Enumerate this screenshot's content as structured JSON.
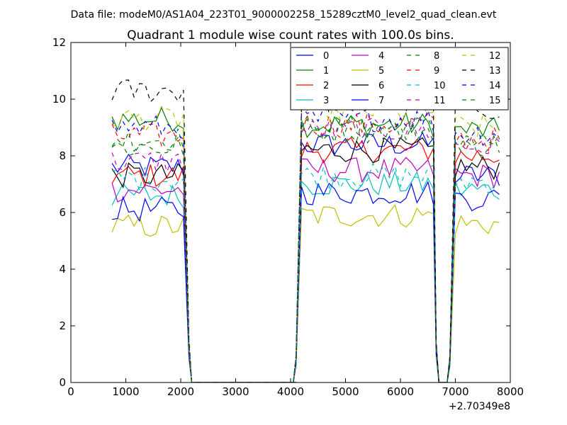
{
  "suptitle": "Data file: modeM0/AS1A04_223T01_9000002258_15289cztM0_level2_quad_clean.evt",
  "chart_data": {
    "type": "line",
    "title": "Quadrant 1 module wise count rates with 100.0s bins.",
    "xlabel": "",
    "ylabel": "",
    "x_offset_label": "+2.70349e8",
    "xlim": [
      0,
      8000
    ],
    "ylim": [
      0,
      12
    ],
    "xticks": [
      0,
      1000,
      2000,
      3000,
      4000,
      5000,
      6000,
      7000,
      8000
    ],
    "yticks": [
      0,
      2,
      4,
      6,
      8,
      10,
      12
    ],
    "legend": {
      "position": "top-right",
      "columns": 4
    },
    "segments": [
      {
        "x_start": 700,
        "x_end": 2100,
        "step": 100,
        "drop_to_zero_at": 2150
      },
      {
        "x_start": 4100,
        "x_end": 6650,
        "step": 100,
        "drop_to_zero_at": 6650
      },
      {
        "x_start": 6900,
        "x_end": 7850,
        "step": 100
      }
    ],
    "series": [
      {
        "name": "0",
        "color": "#0000ff",
        "dash": "solid",
        "levels": [
          7.6,
          8.4,
          7.3
        ]
      },
      {
        "name": "1",
        "color": "#008000",
        "dash": "solid",
        "levels": [
          9.3,
          9.1,
          8.9
        ]
      },
      {
        "name": "2",
        "color": "#ff0000",
        "dash": "solid",
        "levels": [
          7.3,
          8.2,
          8.0
        ]
      },
      {
        "name": "3",
        "color": "#00bfbf",
        "dash": "solid",
        "levels": [
          6.6,
          7.0,
          6.8
        ]
      },
      {
        "name": "4",
        "color": "#bf00bf",
        "dash": "solid",
        "levels": [
          6.8,
          7.5,
          7.3
        ]
      },
      {
        "name": "5",
        "color": "#bfbf00",
        "dash": "solid",
        "levels": [
          5.5,
          5.9,
          5.6
        ]
      },
      {
        "name": "6",
        "color": "#000000",
        "dash": "solid",
        "levels": [
          7.3,
          8.2,
          7.6
        ]
      },
      {
        "name": "7",
        "color": "#0000ff",
        "dash": "solid",
        "levels": [
          6.1,
          6.7,
          6.5
        ]
      },
      {
        "name": "8",
        "color": "#008000",
        "dash": "dashed",
        "levels": [
          8.6,
          9.0,
          8.5
        ]
      },
      {
        "name": "9",
        "color": "#ff0000",
        "dash": "dashed",
        "levels": [
          8.7,
          9.1,
          8.6
        ]
      },
      {
        "name": "10",
        "color": "#00bfbf",
        "dash": "dashed",
        "levels": [
          7.2,
          7.3,
          7.1
        ]
      },
      {
        "name": "11",
        "color": "#bf00bf",
        "dash": "dashed",
        "levels": [
          7.8,
          8.9,
          8.3
        ]
      },
      {
        "name": "12",
        "color": "#bfbf00",
        "dash": "dashed",
        "levels": [
          9.3,
          9.6,
          9.0
        ]
      },
      {
        "name": "13",
        "color": "#000000",
        "dash": "dashed",
        "levels": [
          10.3,
          9.9,
          9.7
        ]
      },
      {
        "name": "14",
        "color": "#0000ff",
        "dash": "dashed",
        "levels": [
          9.0,
          9.3,
          8.8
        ]
      },
      {
        "name": "15",
        "color": "#008000",
        "dash": "dashed",
        "levels": [
          8.3,
          8.9,
          8.4
        ]
      }
    ]
  }
}
